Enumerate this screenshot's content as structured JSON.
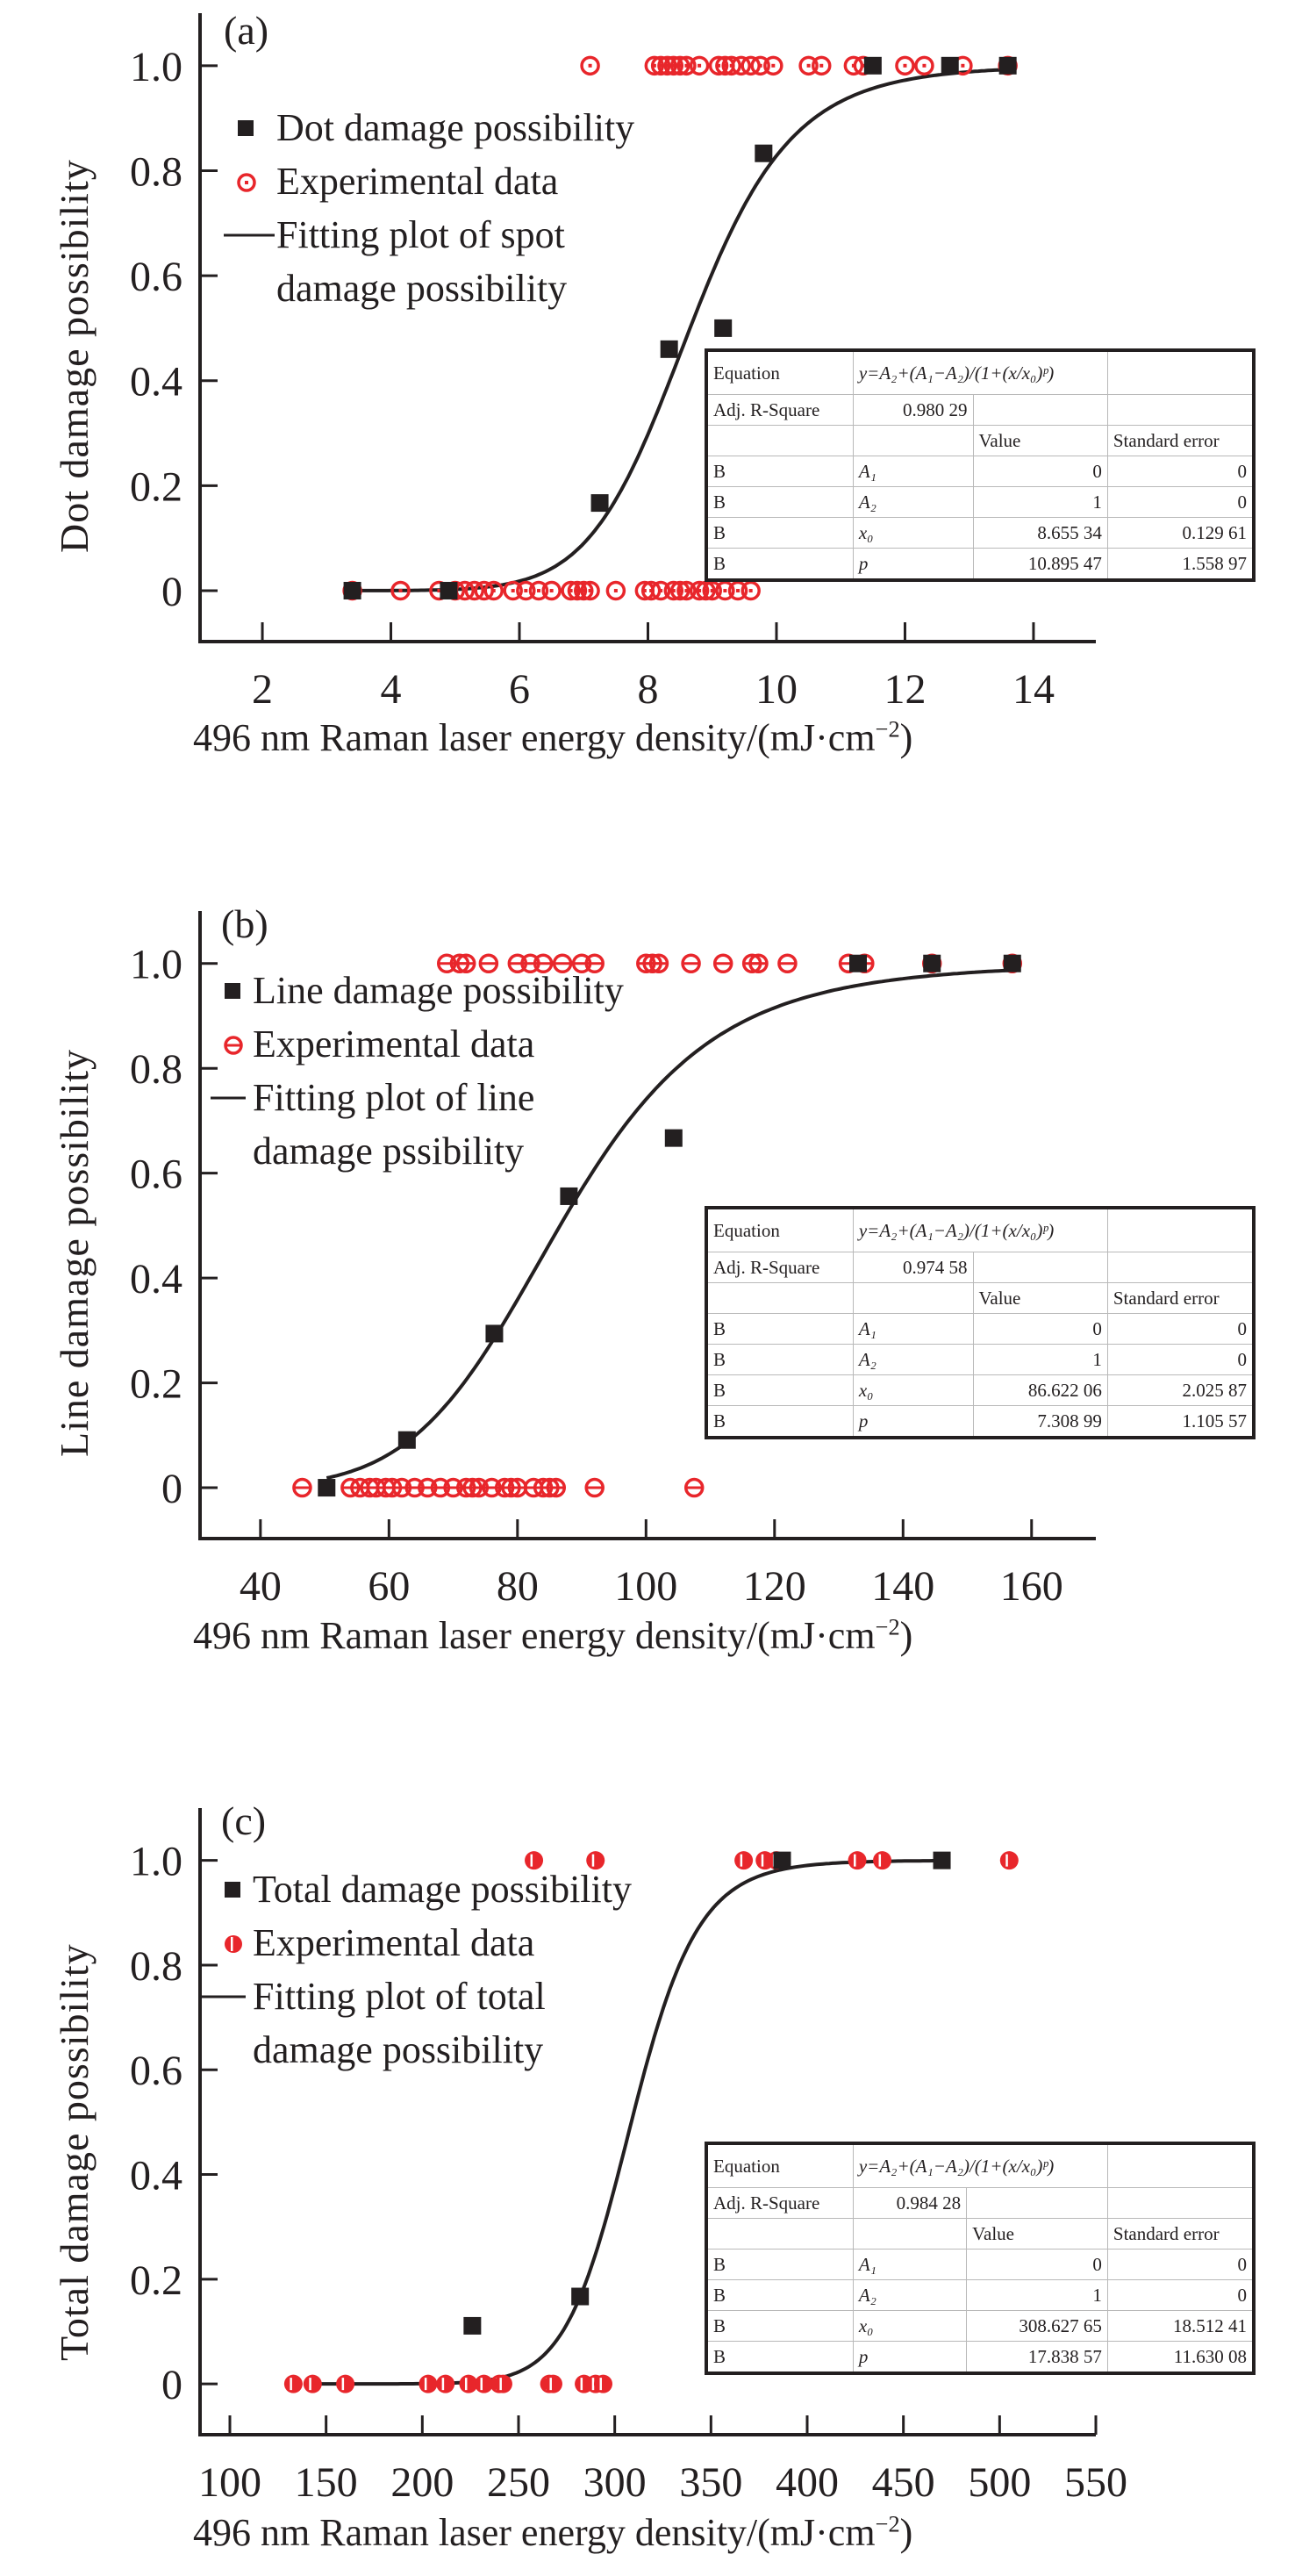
{
  "chart_data": [
    {
      "id": "a",
      "type": "scatter",
      "panel_label": "(a)",
      "xlabel": "496 nm Raman laser energy density/(mJ·cm",
      "xlabel_sup": "−2",
      "xlabel_end": ")",
      "ylabel": "Dot damage possibility",
      "xlim": [
        1.03,
        14.97
      ],
      "ylim": [
        -0.097,
        1.1
      ],
      "xticks": [
        2,
        4,
        6,
        8,
        10,
        12,
        14
      ],
      "xtick_labels": [
        "2",
        "4",
        "6",
        "8",
        "10",
        "12",
        "14"
      ],
      "yticks": [
        0,
        0.2,
        0.4,
        0.6,
        0.8,
        1.0
      ],
      "ytick_labels": [
        "0",
        "0.2",
        "0.4",
        "0.6",
        "0.8",
        "1.0"
      ],
      "legend": {
        "position": "top-left",
        "entries": [
          {
            "symbol": "square",
            "label": "Dot damage possibility"
          },
          {
            "symbol": "circle-dot",
            "label": "Experimental data"
          },
          {
            "symbol": "line",
            "label": "Fitting plot of spot",
            "label2": "damage possibility"
          }
        ]
      },
      "series": [
        {
          "name": "Dot damage possibility",
          "marker": "square",
          "x": [
            3.4,
            4.9,
            7.25,
            8.33,
            9.17,
            9.8,
            11.5,
            12.7,
            13.6
          ],
          "y": [
            0,
            0,
            0.167,
            0.46,
            0.5,
            0.833,
            1,
            1,
            1
          ]
        },
        {
          "name": "Experimental data",
          "marker": "circle-dot",
          "color": "#e8262b",
          "x": [
            7.1,
            8.1,
            8.2,
            8.3,
            8.4,
            8.5,
            8.6,
            8.8,
            9.1,
            9.2,
            9.3,
            9.45,
            9.6,
            9.75,
            9.95,
            10.5,
            10.7,
            11.2,
            11.35,
            12.0,
            12.3,
            12.9,
            13.6,
            3.4,
            4.15,
            4.75,
            5.0,
            5.15,
            5.3,
            5.45,
            5.6,
            5.9,
            6.1,
            6.3,
            6.5,
            6.8,
            6.9,
            7.0,
            7.1,
            7.5,
            7.95,
            8.05,
            8.2,
            8.4,
            8.5,
            8.6,
            8.8,
            8.9,
            9.0,
            9.2,
            9.4,
            9.6
          ],
          "y": [
            1,
            1,
            1,
            1,
            1,
            1,
            1,
            1,
            1,
            1,
            1,
            1,
            1,
            1,
            1,
            1,
            1,
            1,
            1,
            1,
            1,
            1,
            1,
            0,
            0,
            0,
            0,
            0,
            0,
            0,
            0,
            0,
            0,
            0,
            0,
            0,
            0,
            0,
            0,
            0,
            0,
            0,
            0,
            0,
            0,
            0,
            0,
            0,
            0,
            0,
            0,
            0
          ]
        },
        {
          "name": "Fitting plot of spot damage possibility",
          "marker": "line",
          "fit": {
            "A1": 0,
            "A2": 1,
            "x0": 8.65534,
            "p": 10.89547,
            "xrange": [
              3.4,
              13.6
            ]
          }
        }
      ],
      "fit_table": {
        "equation_label": "Equation",
        "equation": "y=A₂+(A₁−A₂)/(1+(x/x₀)ᵖ)",
        "adj_r_label": "Adj. R-Square",
        "adj_r_value": "0.980 29",
        "col_value": "Value",
        "col_error": "Standard error",
        "rows": [
          {
            "group": "B",
            "param": "A₁",
            "value": "0",
            "error": "0"
          },
          {
            "group": "B",
            "param": "A₂",
            "value": "1",
            "error": "0"
          },
          {
            "group": "B",
            "param": "x₀",
            "value": "8.655 34",
            "error": "0.129 61"
          },
          {
            "group": "B",
            "param": "p",
            "value": "10.895 47",
            "error": "1.558 97"
          }
        ]
      }
    },
    {
      "id": "b",
      "type": "scatter",
      "panel_label": "(b)",
      "xlabel": "496 nm Raman laser energy density/(mJ·cm",
      "xlabel_sup": "−2",
      "xlabel_end": ")",
      "ylabel": "Line damage possibility",
      "xlim": [
        30.6,
        170.0
      ],
      "ylim": [
        -0.097,
        1.1
      ],
      "xticks": [
        40,
        60,
        80,
        100,
        120,
        140,
        160
      ],
      "xtick_labels": [
        "40",
        "60",
        "80",
        "100",
        "120",
        "140",
        "160"
      ],
      "yticks": [
        0,
        0.2,
        0.4,
        0.6,
        0.8,
        1.0
      ],
      "ytick_labels": [
        "0",
        "0.2",
        "0.4",
        "0.6",
        "0.8",
        "1.0"
      ],
      "legend": {
        "position": "top-left",
        "entries": [
          {
            "symbol": "square",
            "label": "Line damage possibility"
          },
          {
            "symbol": "circle-bar",
            "label": "Experimental data"
          },
          {
            "symbol": "line",
            "label": "Fitting plot of line",
            "label2": "damage pssibility"
          }
        ]
      },
      "series": [
        {
          "name": "Line damage possibility",
          "marker": "square",
          "x": [
            50.3,
            62.8,
            76.4,
            88.0,
            104.3,
            133,
            144.5,
            157
          ],
          "y": [
            0,
            0.091,
            0.294,
            0.556,
            0.667,
            1,
            1,
            1
          ]
        },
        {
          "name": "Experimental data",
          "marker": "circle-bar",
          "color": "#e8262b",
          "x": [
            69,
            71,
            72,
            75.5,
            80,
            82,
            84,
            87,
            90,
            92,
            100,
            101,
            102,
            107,
            112,
            116.5,
            117.5,
            122,
            131.5,
            134,
            144.5,
            157,
            46.5,
            54,
            55.5,
            57,
            58,
            59.5,
            60.5,
            62,
            64,
            66,
            68,
            70,
            72,
            73,
            74,
            76,
            78,
            79,
            80,
            82.5,
            84,
            85,
            86,
            92,
            107.5
          ],
          "y": [
            1,
            1,
            1,
            1,
            1,
            1,
            1,
            1,
            1,
            1,
            1,
            1,
            1,
            1,
            1,
            1,
            1,
            1,
            1,
            1,
            1,
            1,
            0,
            0,
            0,
            0,
            0,
            0,
            0,
            0,
            0,
            0,
            0,
            0,
            0,
            0,
            0,
            0,
            0,
            0,
            0,
            0,
            0,
            0,
            0,
            0,
            0
          ]
        },
        {
          "name": "Fitting plot of line damage pssibility",
          "marker": "line",
          "fit": {
            "A1": 0,
            "A2": 1,
            "x0": 86.62206,
            "p": 7.30899,
            "xrange": [
              50.3,
              157
            ]
          }
        }
      ],
      "fit_table": {
        "equation_label": "Equation",
        "equation": "y=A₂+(A₁−A₂)/(1+(x/x₀)ᵖ)",
        "adj_r_label": "Adj. R-Square",
        "adj_r_value": "0.974 58",
        "col_value": "Value",
        "col_error": "Standard error",
        "rows": [
          {
            "group": "B",
            "param": "A₁",
            "value": "0",
            "error": "0"
          },
          {
            "group": "B",
            "param": "A₂",
            "value": "1",
            "error": "0"
          },
          {
            "group": "B",
            "param": "x₀",
            "value": "86.622 06",
            "error": "2.025 87"
          },
          {
            "group": "B",
            "param": "p",
            "value": "7.308 99",
            "error": "1.105 57"
          }
        ]
      }
    },
    {
      "id": "c",
      "type": "scatter",
      "panel_label": "(c)",
      "xlabel": "496 nm Raman laser energy density/(mJ·cm",
      "xlabel_sup": "−2",
      "xlabel_end": ")",
      "ylabel": "Total damage possibility",
      "xlim": [
        84.5,
        550
      ],
      "ylim": [
        -0.097,
        1.1
      ],
      "xticks": [
        100,
        150,
        200,
        250,
        300,
        350,
        400,
        450,
        500,
        550
      ],
      "xtick_labels": [
        "100",
        "150",
        "200",
        "250",
        "300",
        "350",
        "400",
        "450",
        "500",
        "550"
      ],
      "yticks": [
        0,
        0.2,
        0.4,
        0.6,
        0.8,
        1.0
      ],
      "ytick_labels": [
        "0",
        "0.2",
        "0.4",
        "0.6",
        "0.8",
        "1.0"
      ],
      "legend": {
        "position": "top-left",
        "entries": [
          {
            "symbol": "square",
            "label": "Total damage possibility"
          },
          {
            "symbol": "half-circle",
            "label": "Experimental data"
          },
          {
            "symbol": "line",
            "label": "Fitting plot of total",
            "label2": "damage possibility"
          }
        ]
      },
      "series": [
        {
          "name": "Total damage possibility",
          "marker": "square",
          "x": [
            226,
            282,
            387,
            470
          ],
          "y": [
            0.111,
            0.167,
            1,
            1
          ]
        },
        {
          "name": "Experimental data",
          "marker": "half-circle",
          "color": "#e8262b",
          "x": [
            258,
            290,
            367,
            378,
            384,
            426,
            439,
            505,
            133,
            143,
            160,
            203,
            212,
            224,
            232,
            240,
            242,
            266,
            268,
            284,
            290,
            294
          ],
          "y": [
            1,
            1,
            1,
            1,
            1,
            1,
            1,
            1,
            0,
            0,
            0,
            0,
            0,
            0,
            0,
            0,
            0,
            0,
            0,
            0,
            0,
            0
          ]
        },
        {
          "name": "Fitting plot of total damage possibility",
          "marker": "line",
          "fit": {
            "A1": 0,
            "A2": 1,
            "x0": 308.62765,
            "p": 17.83857,
            "xrange": [
              145,
              470
            ]
          }
        }
      ],
      "fit_table": {
        "equation_label": "Equation",
        "equation": "y=A₂+(A₁−A₂)/(1+(x/x₀)ᵖ)",
        "adj_r_label": "Adj. R-Square",
        "adj_r_value": "0.984 28",
        "col_value": "Value",
        "col_error": "Standard error",
        "rows": [
          {
            "group": "B",
            "param": "A₁",
            "value": "0",
            "error": "0"
          },
          {
            "group": "B",
            "param": "A₂",
            "value": "1",
            "error": "0"
          },
          {
            "group": "B",
            "param": "x₀",
            "value": "308.627 65",
            "error": "18.512 41"
          },
          {
            "group": "B",
            "param": "p",
            "value": "17.838 57",
            "error": "11.630 08"
          }
        ]
      }
    }
  ]
}
